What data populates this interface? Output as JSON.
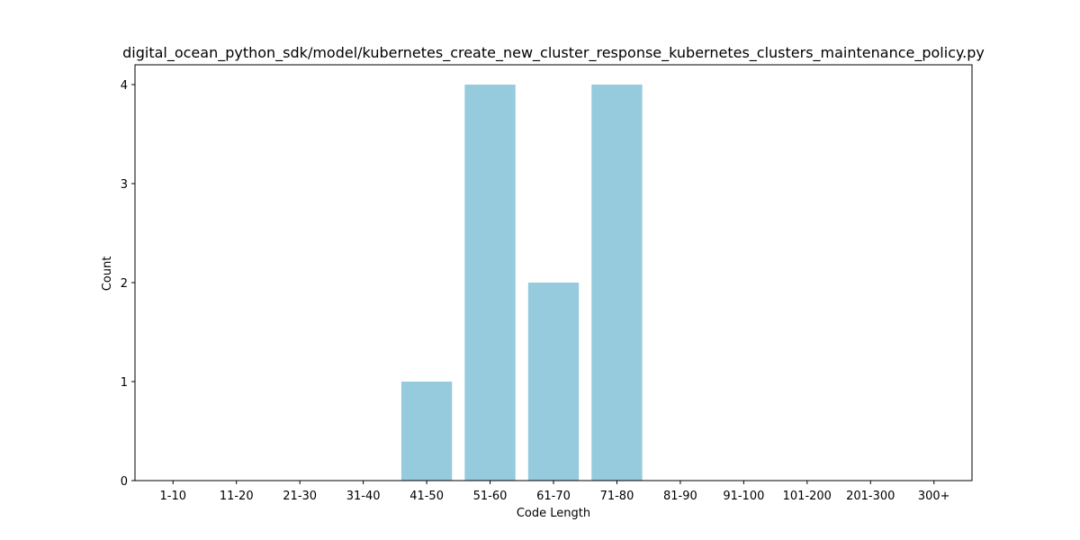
{
  "chart_data": {
    "type": "bar",
    "title": "digital_ocean_python_sdk/model/kubernetes_create_new_cluster_response_kubernetes_clusters_maintenance_policy.py",
    "xlabel": "Code Length",
    "ylabel": "Count",
    "categories": [
      "1-10",
      "11-20",
      "21-30",
      "31-40",
      "41-50",
      "51-60",
      "61-70",
      "71-80",
      "81-90",
      "91-100",
      "101-200",
      "201-300",
      "300+"
    ],
    "values": [
      0,
      0,
      0,
      0,
      1,
      4,
      2,
      4,
      0,
      0,
      0,
      0,
      0
    ],
    "ylim": [
      0,
      4.2
    ],
    "yticks": [
      0,
      1,
      2,
      3,
      4
    ],
    "grid": false,
    "bar_color": "#96cadd"
  }
}
